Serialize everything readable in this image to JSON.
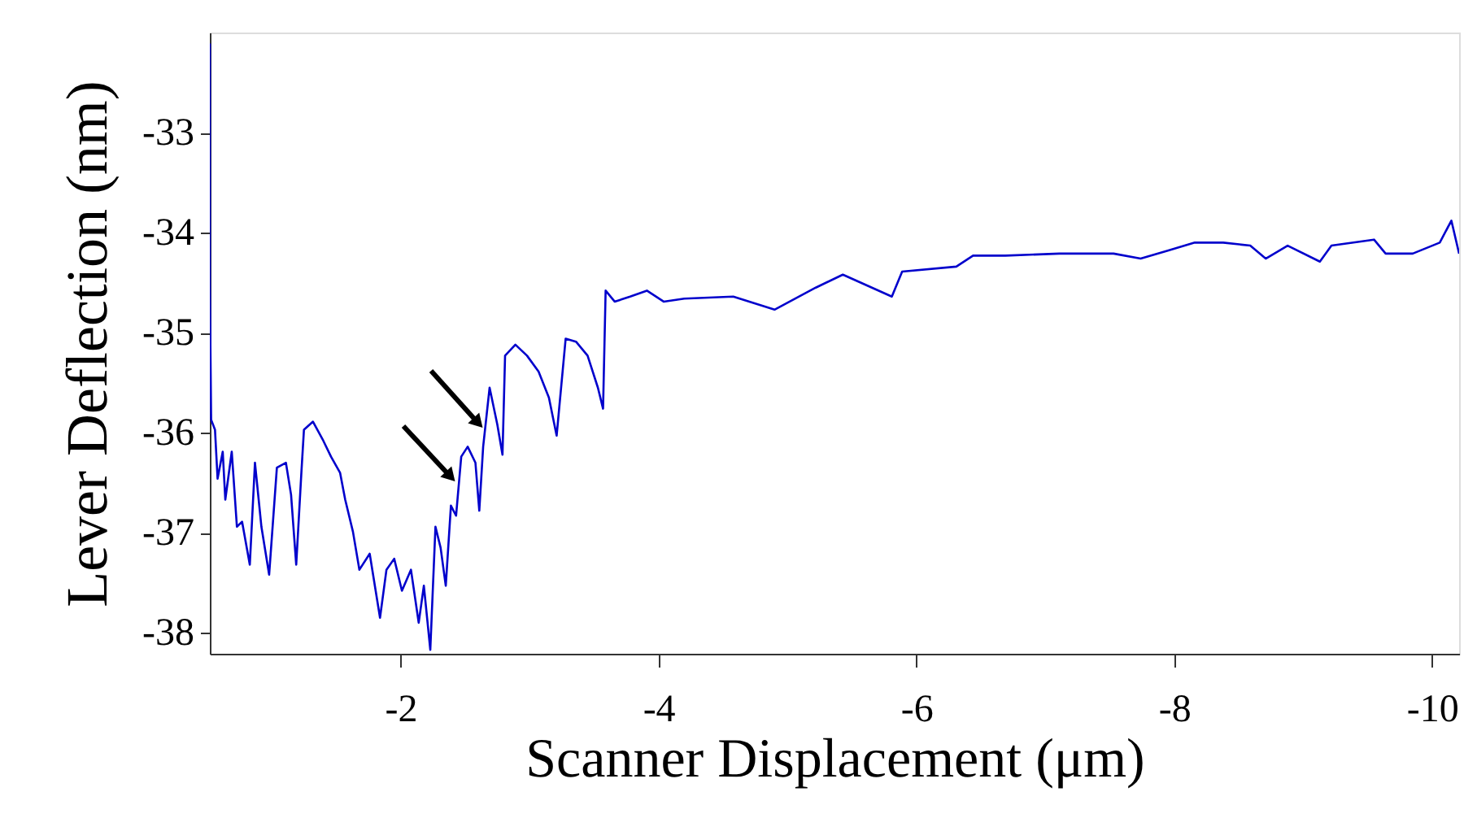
{
  "chart_data": {
    "type": "line",
    "xlabel": "Scanner Displacement (μm)",
    "ylabel": "Lever Deflection (nm)",
    "xlim": [
      -0.52,
      -10.21
    ],
    "ylim": [
      -38.21,
      -32.0
    ],
    "xticks": [
      -2,
      -4,
      -6,
      -8,
      -10
    ],
    "yticks": [
      -38,
      -37,
      -36,
      -35,
      -34,
      -33
    ],
    "series": [
      {
        "color": "#0000cc",
        "x": [
          -0.52,
          -0.52,
          -0.53,
          -0.56,
          -0.58,
          -0.62,
          -0.64,
          -0.69,
          -0.73,
          -0.77,
          -0.83,
          -0.87,
          -0.92,
          -0.98,
          -1.04,
          -1.11,
          -1.15,
          -1.19,
          -1.23,
          -1.25,
          -1.32,
          -1.4,
          -1.46,
          -1.53,
          -1.57,
          -1.63,
          -1.68,
          -1.76,
          -1.84,
          -1.89,
          -1.95,
          -2.01,
          -2.08,
          -2.14,
          -2.18,
          -2.23,
          -2.27,
          -2.31,
          -2.35,
          -2.39,
          -2.43,
          -2.47,
          -2.52,
          -2.58,
          -2.61,
          -2.64,
          -2.69,
          -2.75,
          -2.79,
          -2.81,
          -2.89,
          -2.98,
          -3.07,
          -3.15,
          -3.21,
          -3.28,
          -3.36,
          -3.45,
          -3.53,
          -3.57,
          -3.59,
          -3.66,
          -3.78,
          -3.91,
          -4.04,
          -4.2,
          -4.58,
          -4.9,
          -5.22,
          -5.43,
          -5.81,
          -5.89,
          -6.31,
          -6.44,
          -6.69,
          -7.11,
          -7.53,
          -7.74,
          -7.95,
          -8.16,
          -8.38,
          -8.59,
          -8.71,
          -8.88,
          -9.13,
          -9.22,
          -9.55,
          -9.64,
          -9.85,
          -10.06,
          -10.15,
          -10.21
        ],
        "values": [
          -32.11,
          -34.52,
          -35.87,
          -35.97,
          -36.46,
          -36.19,
          -36.67,
          -36.19,
          -36.94,
          -36.89,
          -37.32,
          -36.3,
          -36.94,
          -37.42,
          -36.35,
          -36.3,
          -36.62,
          -37.32,
          -36.4,
          -35.97,
          -35.89,
          -36.08,
          -36.24,
          -36.4,
          -36.67,
          -36.99,
          -37.37,
          -37.21,
          -37.85,
          -37.37,
          -37.26,
          -37.58,
          -37.37,
          -37.9,
          -37.53,
          -38.17,
          -36.94,
          -37.15,
          -37.53,
          -36.73,
          -36.83,
          -36.24,
          -36.14,
          -36.3,
          -36.78,
          -36.14,
          -35.55,
          -35.92,
          -36.22,
          -35.23,
          -35.12,
          -35.23,
          -35.39,
          -35.65,
          -36.03,
          -35.06,
          -35.09,
          -35.23,
          -35.55,
          -35.76,
          -34.58,
          -34.69,
          -34.64,
          -34.58,
          -34.69,
          -34.66,
          -34.64,
          -34.77,
          -34.55,
          -34.42,
          -34.64,
          -34.39,
          -34.34,
          -34.23,
          -34.23,
          -34.21,
          -34.21,
          -34.26,
          -34.18,
          -34.1,
          -34.1,
          -34.13,
          -34.26,
          -34.13,
          -34.29,
          -34.13,
          -34.07,
          -34.21,
          -34.21,
          -34.1,
          -33.88,
          -34.21
        ]
      }
    ]
  }
}
